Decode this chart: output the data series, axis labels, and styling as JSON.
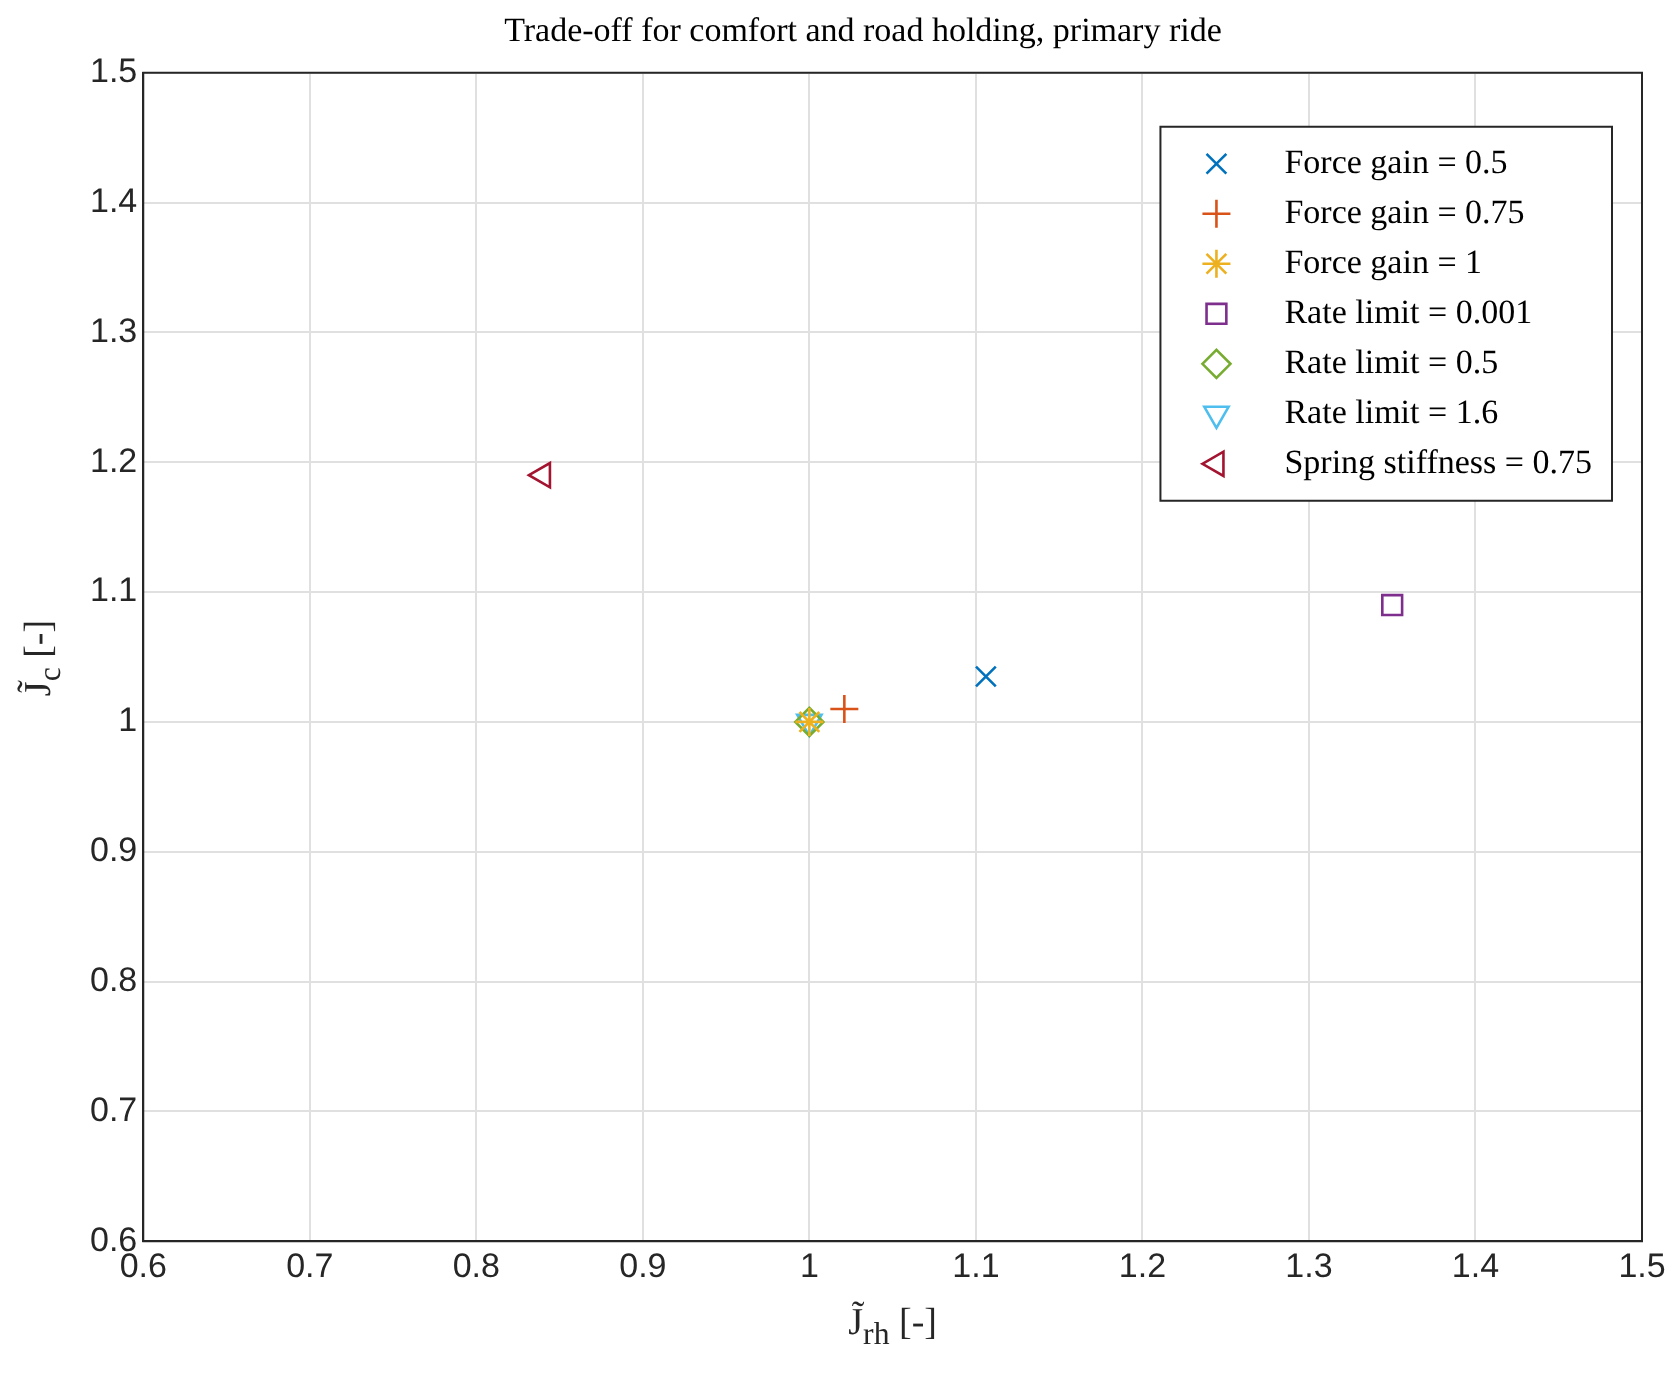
{
  "chart_data": {
    "type": "scatter",
    "title": "Trade-off for comfort and road holding, primary ride",
    "xlabel": "J̃$_{rh}$ [-]",
    "ylabel": "J̃$_{c}$ [-]",
    "xlim": [
      0.6,
      1.5
    ],
    "xticks": [
      0.6,
      0.7,
      0.8,
      0.9,
      1,
      1.1,
      1.2,
      1.3,
      1.4,
      1.5
    ],
    "ylim": [
      0.6,
      1.5
    ],
    "yticks": [
      0.6,
      0.7,
      0.8,
      0.9,
      1,
      1.1,
      1.2,
      1.3,
      1.4,
      1.5
    ],
    "grid": true,
    "legend": "top right",
    "series": [
      {
        "name": "Force gain = 0.5",
        "color": "#0072bd",
        "marker": "x",
        "x": [
          1.106
        ],
        "values": [
          1.035
        ]
      },
      {
        "name": "Force gain = 0.75",
        "color": "#d95319",
        "marker": "plus",
        "x": [
          1.021
        ],
        "values": [
          1.01
        ]
      },
      {
        "name": "Force gain = 1",
        "color": "#edb120",
        "marker": "cross",
        "x": [
          1.0
        ],
        "values": [
          1.0
        ]
      },
      {
        "name": "Rate limit = 0.001",
        "color": "#7e2f8e",
        "marker": "square",
        "x": [
          1.35
        ],
        "values": [
          1.09
        ]
      },
      {
        "name": "Rate limit = 0.5",
        "color": "#77ac30",
        "marker": "diamond",
        "x": [
          1.0
        ],
        "values": [
          1.0
        ]
      },
      {
        "name": "Rate limit = 1.6",
        "color": "#4dbeee",
        "marker": "triangle-down",
        "x": [
          1.0
        ],
        "values": [
          1.0
        ]
      },
      {
        "name": "Spring stiffness = 0.75",
        "color": "#a2142f",
        "marker": "triangle-left",
        "x": [
          0.84
        ],
        "values": [
          1.19
        ]
      }
    ]
  }
}
